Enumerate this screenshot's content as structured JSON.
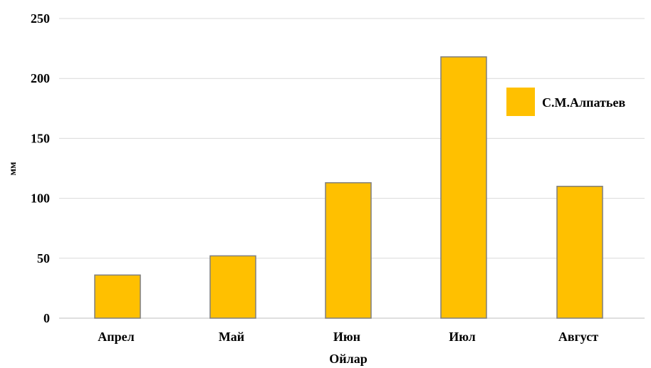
{
  "chart_data": {
    "type": "bar",
    "title": "",
    "xlabel": "Ойлар",
    "ylabel": "мм",
    "categories": [
      "Апрел",
      "Май",
      "Июн",
      "Июл",
      "Август"
    ],
    "series": [
      {
        "name": "С.М.Алпатьев",
        "values": [
          36,
          52,
          113,
          218,
          110
        ],
        "color": "#FFC000",
        "stroke": "#7f7f7f"
      }
    ],
    "ylim": [
      0,
      250
    ],
    "yticks": [
      0,
      50,
      100,
      150,
      200,
      250
    ],
    "grid": true,
    "legend_position": "right"
  }
}
